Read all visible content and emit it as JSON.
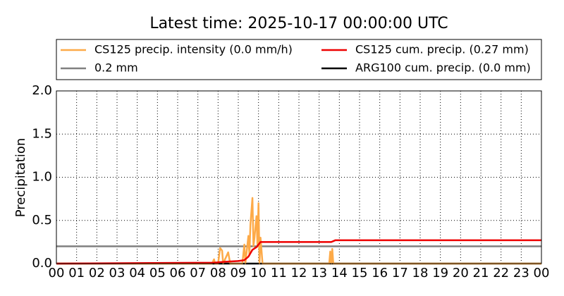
{
  "chart_data": {
    "type": "line",
    "title": "Latest time: 2025-10-17 00:00:00 UTC",
    "y_label": "Precipitation",
    "xlim": [
      0,
      24
    ],
    "ylim": [
      0,
      2
    ],
    "xticks": [
      {
        "value": 0,
        "label": "00"
      },
      {
        "value": 1,
        "label": "01"
      },
      {
        "value": 2,
        "label": "02"
      },
      {
        "value": 3,
        "label": "03"
      },
      {
        "value": 4,
        "label": "04"
      },
      {
        "value": 5,
        "label": "05"
      },
      {
        "value": 6,
        "label": "06"
      },
      {
        "value": 7,
        "label": "07"
      },
      {
        "value": 8,
        "label": "08"
      },
      {
        "value": 9,
        "label": "09"
      },
      {
        "value": 10,
        "label": "10"
      },
      {
        "value": 11,
        "label": "11"
      },
      {
        "value": 12,
        "label": "12"
      },
      {
        "value": 13,
        "label": "13"
      },
      {
        "value": 14,
        "label": "14"
      },
      {
        "value": 15,
        "label": "15"
      },
      {
        "value": 16,
        "label": "16"
      },
      {
        "value": 17,
        "label": "17"
      },
      {
        "value": 18,
        "label": "18"
      },
      {
        "value": 19,
        "label": "19"
      },
      {
        "value": 20,
        "label": "20"
      },
      {
        "value": 21,
        "label": "21"
      },
      {
        "value": 22,
        "label": "22"
      },
      {
        "value": 23,
        "label": "23"
      },
      {
        "value": 24,
        "label": "00"
      }
    ],
    "yticks": [
      {
        "value": 0,
        "label": "0.0"
      },
      0.5,
      {
        "value": 1,
        "label": "1.0"
      },
      1.5,
      {
        "value": 2,
        "label": "2.0"
      }
    ],
    "grid": true,
    "legend": "top",
    "series": [
      {
        "name": "CS125 precip. intensity (0.0 mm/h)",
        "color": "#fdaa48",
        "x": [
          0,
          7.7,
          7.8,
          7.85,
          8.0,
          8.1,
          8.2,
          8.25,
          8.5,
          8.6,
          9.2,
          9.3,
          9.35,
          9.5,
          9.55,
          9.6,
          9.7,
          9.75,
          9.8,
          9.9,
          9.95,
          10.0,
          10.05,
          10.1,
          10.2,
          13.5,
          13.55,
          13.6,
          13.65,
          13.7,
          24
        ],
        "values": [
          0,
          0,
          0.05,
          0,
          0,
          0.18,
          0.15,
          0,
          0.13,
          0,
          0,
          0.22,
          0,
          0.32,
          0.1,
          0.45,
          0.76,
          0.2,
          0.3,
          0.55,
          0.2,
          0.7,
          0,
          0.3,
          0,
          0,
          0.14,
          0,
          0.17,
          0,
          0
        ]
      },
      {
        "name": "CS125 cum. precip. (0.27 mm)",
        "color": "#ee0000",
        "x": [
          0,
          7.8,
          8.3,
          9.0,
          9.3,
          9.5,
          9.7,
          9.9,
          10.1,
          13.6,
          13.8,
          24
        ],
        "values": [
          0,
          0.01,
          0.02,
          0.03,
          0.04,
          0.08,
          0.16,
          0.19,
          0.25,
          0.25,
          0.27,
          0.27
        ]
      },
      {
        "name": "0.2 mm",
        "color": "#808080",
        "x": [
          0,
          24
        ],
        "values": [
          0.2,
          0.2
        ]
      },
      {
        "name": "ARG100 cum. precip. (0.0 mm)",
        "color": "#000000",
        "x": [
          0,
          24
        ],
        "values": [
          0,
          0
        ]
      }
    ]
  }
}
